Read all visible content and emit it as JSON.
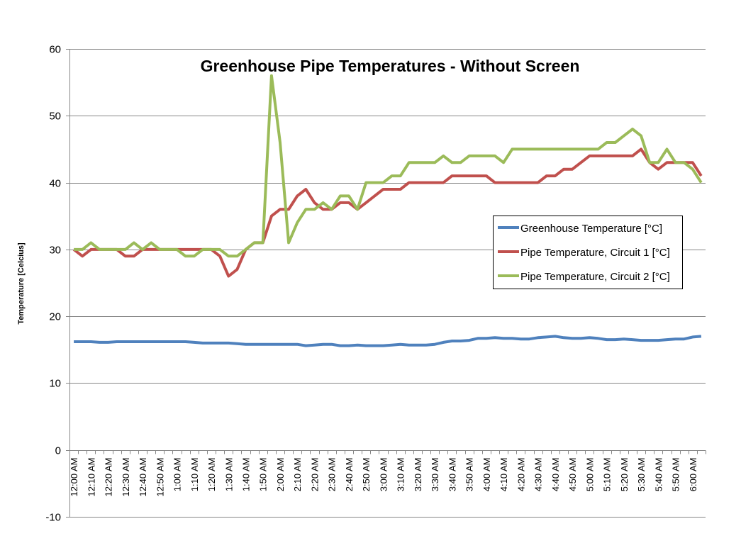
{
  "chart_data": {
    "type": "line",
    "title": "Greenhouse Pipe Temperatures - Without Screen",
    "xlabel": "",
    "ylabel": "Temperature [Celcius]",
    "ylim": [
      -10,
      60
    ],
    "yticks": [
      -10,
      0,
      10,
      20,
      30,
      40,
      50,
      60
    ],
    "grid": true,
    "legend_position": "right",
    "tick_labels": [
      "12:00 AM",
      "12:10 AM",
      "12:20 AM",
      "12:30 AM",
      "12:40 AM",
      "12:50 AM",
      "1:00 AM",
      "1:10 AM",
      "1:20 AM",
      "1:30 AM",
      "1:40 AM",
      "1:50 AM",
      "2:00 AM",
      "2:10 AM",
      "2:20 AM",
      "2:30 AM",
      "2:40 AM",
      "2:50 AM",
      "3:00 AM",
      "3:10 AM",
      "3:20 AM",
      "3:30 AM",
      "3:40 AM",
      "3:50 AM",
      "4:00 AM",
      "4:10 AM",
      "4:20 AM",
      "4:30 AM",
      "4:40 AM",
      "4:50 AM",
      "5:00 AM",
      "5:10 AM",
      "5:20 AM",
      "5:30 AM",
      "5:40 AM",
      "5:50 AM",
      "6:00 AM"
    ],
    "series": [
      {
        "name": "Greenhouse Temperature [°C]",
        "color": "#4f81bd",
        "values": [
          16.2,
          16.2,
          16.2,
          16.1,
          16.1,
          16.2,
          16.2,
          16.2,
          16.2,
          16.2,
          16.2,
          16.2,
          16.2,
          16.2,
          16.1,
          16.0,
          16.0,
          16.0,
          16.0,
          15.9,
          15.8,
          15.8,
          15.8,
          15.8,
          15.8,
          15.8,
          15.8,
          15.6,
          15.7,
          15.8,
          15.8,
          15.6,
          15.6,
          15.7,
          15.6,
          15.6,
          15.6,
          15.7,
          15.8,
          15.7,
          15.7,
          15.7,
          15.8,
          16.1,
          16.3,
          16.3,
          16.4,
          16.7,
          16.7,
          16.8,
          16.7,
          16.7,
          16.6,
          16.6,
          16.8,
          16.9,
          17.0,
          16.8,
          16.7,
          16.7,
          16.8,
          16.7,
          16.5,
          16.5,
          16.6,
          16.5,
          16.4,
          16.4,
          16.4,
          16.5,
          16.6,
          16.6,
          16.9,
          17.0
        ]
      },
      {
        "name": "Pipe Temperature, Circuit 1 [°C]",
        "color": "#c0504d",
        "values": [
          30,
          29,
          30,
          30,
          30,
          30,
          29,
          29,
          30,
          30,
          30,
          30,
          30,
          30,
          30,
          30,
          30,
          29,
          26,
          27,
          30,
          31,
          31,
          35,
          36,
          36,
          38,
          39,
          37,
          36,
          36,
          37,
          37,
          36,
          37,
          38,
          39,
          39,
          39,
          40,
          40,
          40,
          40,
          40,
          41,
          41,
          41,
          41,
          41,
          40,
          40,
          40,
          40,
          40,
          40,
          41,
          41,
          42,
          42,
          43,
          44,
          44,
          44,
          44,
          44,
          44,
          45,
          43,
          42,
          43,
          43,
          43,
          43,
          41
        ]
      },
      {
        "name": "Pipe Temperature, Circuit 2 [°C]",
        "color": "#9bbb59",
        "values": [
          30,
          30,
          31,
          30,
          30,
          30,
          30,
          31,
          30,
          31,
          30,
          30,
          30,
          29,
          29,
          30,
          30,
          30,
          29,
          29,
          30,
          31,
          31,
          56,
          46,
          31,
          34,
          36,
          36,
          37,
          36,
          38,
          38,
          36,
          40,
          40,
          40,
          41,
          41,
          43,
          43,
          43,
          43,
          44,
          43,
          43,
          44,
          44,
          44,
          44,
          43,
          45,
          45,
          45,
          45,
          45,
          45,
          45,
          45,
          45,
          45,
          45,
          46,
          46,
          47,
          48,
          47,
          43,
          43,
          45,
          43,
          43,
          42,
          40
        ]
      }
    ]
  }
}
